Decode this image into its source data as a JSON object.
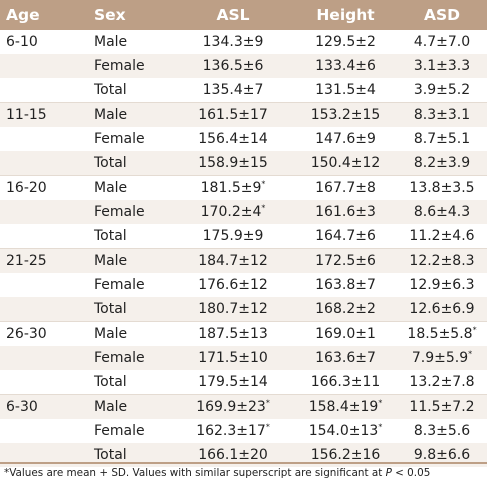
{
  "table": {
    "headers": {
      "age": "Age",
      "sex": "Sex",
      "asl": "ASL",
      "height": "Height",
      "asd": "ASD"
    },
    "groups": [
      {
        "age": "6-10",
        "rows": [
          {
            "sex": "Male",
            "asl": "134.3±9",
            "asl_sup": "",
            "height": "129.5±2",
            "height_sup": "",
            "asd": "4.7±7.0",
            "asd_sup": ""
          },
          {
            "sex": "Female",
            "asl": "136.5±6",
            "asl_sup": "",
            "height": "133.4±6",
            "height_sup": "",
            "asd": "3.1±3.3",
            "asd_sup": ""
          },
          {
            "sex": "Total",
            "asl": "135.4±7",
            "asl_sup": "",
            "height": "131.5±4",
            "height_sup": "",
            "asd": "3.9±5.2",
            "asd_sup": ""
          }
        ]
      },
      {
        "age": "11-15",
        "rows": [
          {
            "sex": "Male",
            "asl": "161.5±17",
            "asl_sup": "",
            "height": "153.2±15",
            "height_sup": "",
            "asd": "8.3±3.1",
            "asd_sup": ""
          },
          {
            "sex": "Female",
            "asl": "156.4±14",
            "asl_sup": "",
            "height": "147.6±9",
            "height_sup": "",
            "asd": "8.7±5.1",
            "asd_sup": ""
          },
          {
            "sex": "Total",
            "asl": "158.9±15",
            "asl_sup": "",
            "height": "150.4±12",
            "height_sup": "",
            "asd": "8.2±3.9",
            "asd_sup": ""
          }
        ]
      },
      {
        "age": "16-20",
        "rows": [
          {
            "sex": "Male",
            "asl": "181.5±9",
            "asl_sup": "*",
            "height": "167.7±8",
            "height_sup": "",
            "asd": "13.8±3.5",
            "asd_sup": ""
          },
          {
            "sex": "Female",
            "asl": "170.2±4",
            "asl_sup": "*",
            "height": "161.6±3",
            "height_sup": "",
            "asd": "8.6±4.3",
            "asd_sup": ""
          },
          {
            "sex": "Total",
            "asl": "175.9±9",
            "asl_sup": "",
            "height": "164.7±6",
            "height_sup": "",
            "asd": "11.2±4.6",
            "asd_sup": ""
          }
        ]
      },
      {
        "age": "21-25",
        "rows": [
          {
            "sex": "Male",
            "asl": "184.7±12",
            "asl_sup": "",
            "height": "172.5±6",
            "height_sup": "",
            "asd": "12.2±8.3",
            "asd_sup": ""
          },
          {
            "sex": "Female",
            "asl": "176.6±12",
            "asl_sup": "",
            "height": "163.8±7",
            "height_sup": "",
            "asd": "12.9±6.3",
            "asd_sup": ""
          },
          {
            "sex": "Total",
            "asl": "180.7±12",
            "asl_sup": "",
            "height": "168.2±2",
            "height_sup": "",
            "asd": "12.6±6.9",
            "asd_sup": ""
          }
        ]
      },
      {
        "age": "26-30",
        "rows": [
          {
            "sex": "Male",
            "asl": "187.5±13",
            "asl_sup": "",
            "height": "169.0±1",
            "height_sup": "",
            "asd": "18.5±5.8",
            "asd_sup": "*"
          },
          {
            "sex": "Female",
            "asl": "171.5±10",
            "asl_sup": "",
            "height": "163.6±7",
            "height_sup": "",
            "asd": "7.9±5.9",
            "asd_sup": "*"
          },
          {
            "sex": "Total",
            "asl": "179.5±14",
            "asl_sup": "",
            "height": "166.3±11",
            "height_sup": "",
            "asd": "13.2±7.8",
            "asd_sup": ""
          }
        ]
      },
      {
        "age": "6-30",
        "rows": [
          {
            "sex": "Male",
            "asl": "169.9±23",
            "asl_sup": "*",
            "height": "158.4±19",
            "height_sup": "*",
            "asd": "11.5±7.2",
            "asd_sup": ""
          },
          {
            "sex": "Female",
            "asl": "162.3±17",
            "asl_sup": "*",
            "height": "154.0±13",
            "height_sup": "*",
            "asd": "8.3±5.6",
            "asd_sup": ""
          },
          {
            "sex": "Total",
            "asl": "166.1±20",
            "asl_sup": "",
            "height": "156.2±16",
            "height_sup": "",
            "asd": "9.8±6.6",
            "asd_sup": ""
          }
        ]
      }
    ]
  },
  "footnote": {
    "text_before": "*Values are mean + SD. Values with similar superscript are significant at ",
    "p_symbol": "P",
    "text_after": " < 0.05"
  },
  "colors": {
    "header_bg": "#bd9f86",
    "header_text": "#ffffff",
    "row_shade": "#f5f0eb",
    "text": "#222222"
  }
}
